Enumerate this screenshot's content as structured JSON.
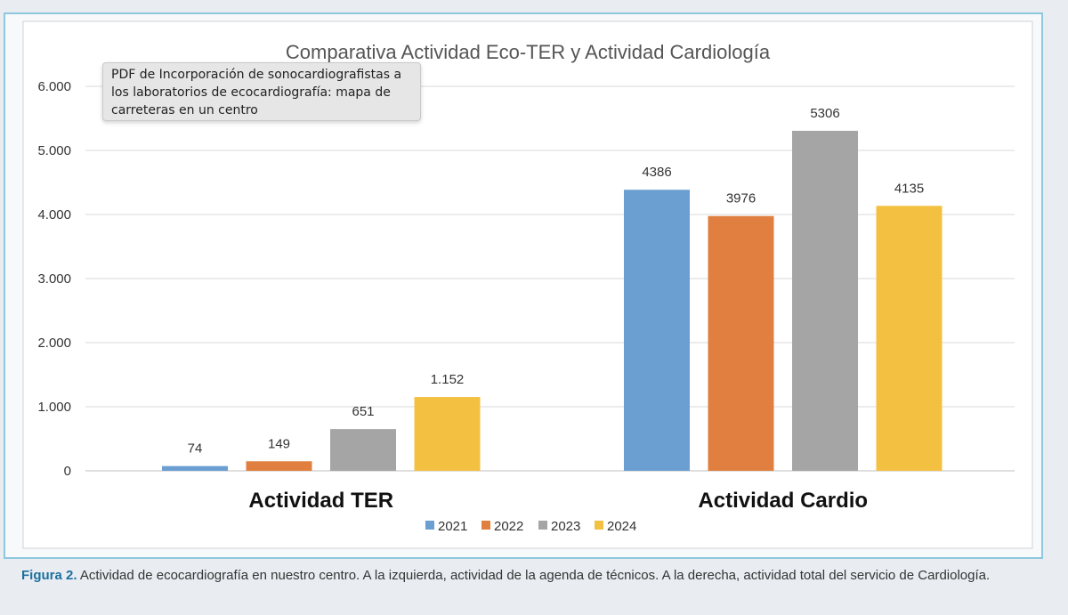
{
  "chart_data": {
    "type": "bar",
    "title": "Comparativa Actividad Eco-TER y Actividad Cardiología",
    "groups": [
      "Actividad TER",
      "Actividad Cardio"
    ],
    "series": [
      {
        "name": "2021",
        "color": "#6b9fd1",
        "values": [
          74,
          4386
        ],
        "labels": [
          "74",
          "4386"
        ]
      },
      {
        "name": "2022",
        "color": "#e07f3f",
        "values": [
          149,
          3976
        ],
        "labels": [
          "149",
          "3976"
        ]
      },
      {
        "name": "2023",
        "color": "#a5a5a5",
        "values": [
          651,
          5306
        ],
        "labels": [
          "651",
          "5306"
        ]
      },
      {
        "name": "2024",
        "color": "#f4c042",
        "values": [
          1152,
          4135
        ],
        "labels": [
          "1.152",
          "4135"
        ]
      }
    ],
    "y_ticks": [
      0,
      1000,
      2000,
      3000,
      4000,
      5000,
      6000
    ],
    "y_tick_labels": [
      "0",
      "1.000",
      "2.000",
      "3.000",
      "4.000",
      "5.000",
      "6.000"
    ],
    "ylim": [
      0,
      6000
    ],
    "grid": true,
    "legend_position": "bottom"
  },
  "tooltip": {
    "text": "PDF de Incorporación de sonocardiografistas a los laboratorios de ecocardiografía: mapa de carreteras en un centro"
  },
  "caption": {
    "label": "Figura 2.",
    "text": "Actividad de ecocardiografía en nuestro centro. A la izquierda, actividad de la agenda de técnicos. A la derecha, actividad total del servicio de Cardiología."
  }
}
